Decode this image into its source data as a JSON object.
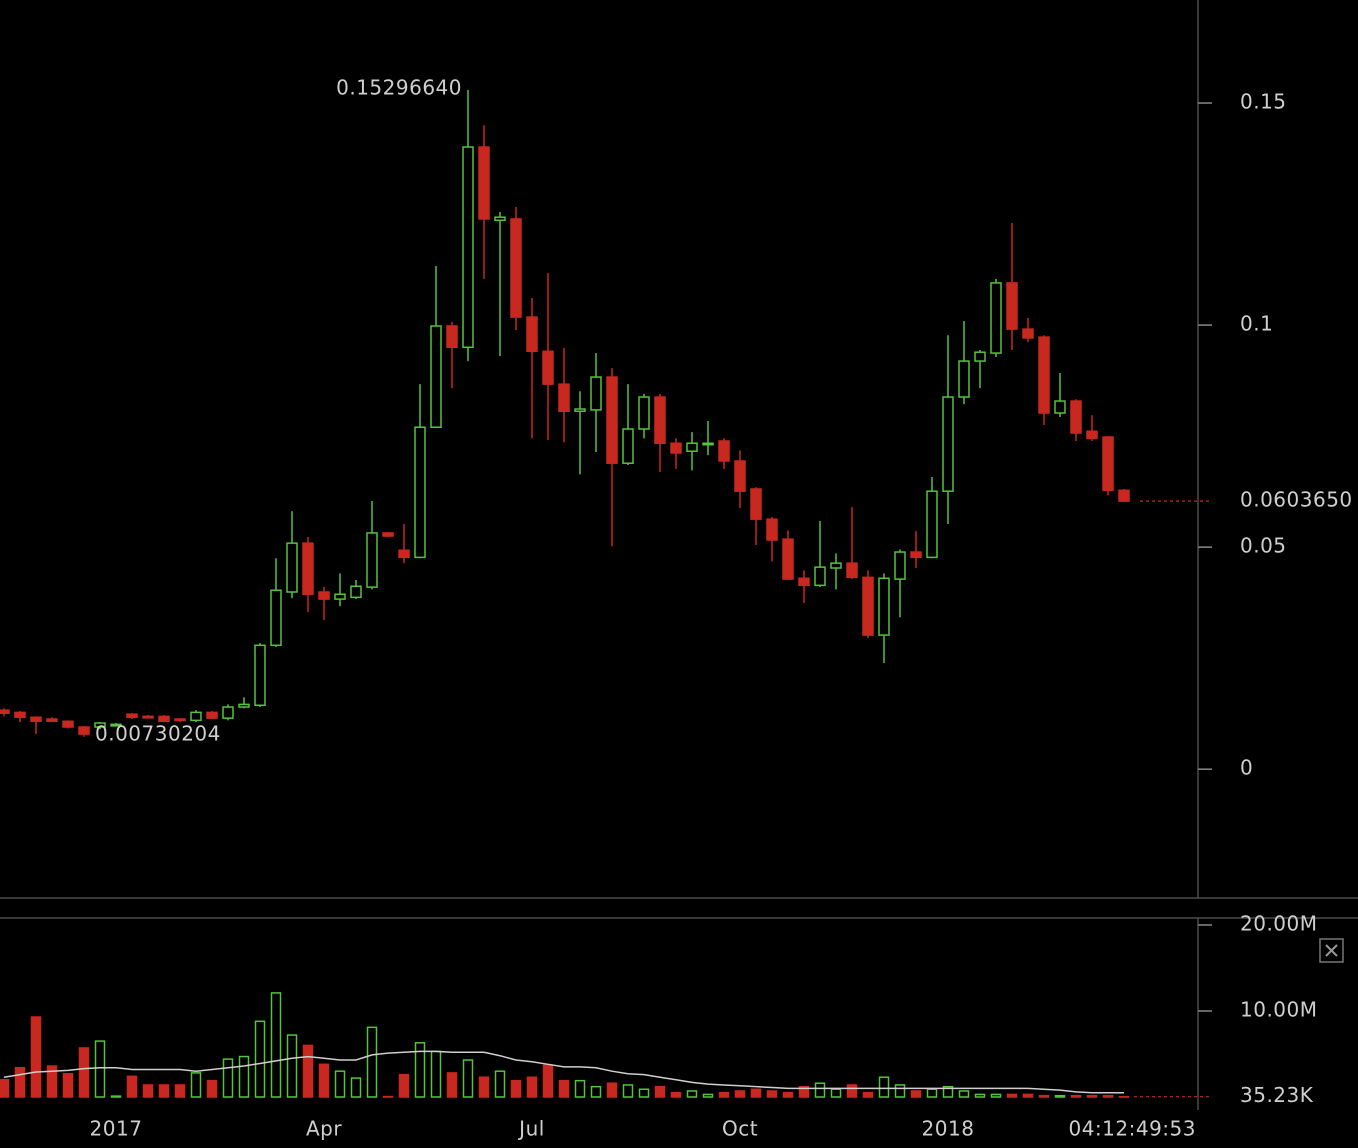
{
  "chart_data": [
    {
      "type": "candlestick",
      "up_color": "#56c23d",
      "down_color": "#c8281f",
      "open": [
        0.0133,
        0.0128,
        0.0117,
        0.0113,
        0.0108,
        0.0095,
        0.0095,
        0.0099,
        0.0124,
        0.0119,
        0.0119,
        0.0113,
        0.011,
        0.0128,
        0.0115,
        0.014,
        0.0144,
        0.0279,
        0.0399,
        0.0509,
        0.0399,
        0.0383,
        0.0387,
        0.041,
        0.0532,
        0.0493,
        0.0477,
        0.077,
        0.0998,
        0.095,
        0.1401,
        0.1236,
        0.1239,
        0.1018,
        0.0941,
        0.0867,
        0.0806,
        0.0809,
        0.0883,
        0.0689,
        0.0766,
        0.0838,
        0.0734,
        0.0716,
        0.0732,
        0.0739,
        0.0694,
        0.0631,
        0.0563,
        0.0518,
        0.043,
        0.0414,
        0.0453,
        0.0464,
        0.0432,
        0.0302,
        0.0428,
        0.0489,
        0.0477,
        0.0626,
        0.0838,
        0.0919,
        0.0937,
        0.1095,
        0.0991,
        0.0973,
        0.0802,
        0.0829,
        0.0761,
        0.0748,
        0.0628
      ],
      "high": [
        0.0137,
        0.0131,
        0.0119,
        0.0117,
        0.011,
        0.0097,
        0.0106,
        0.0104,
        0.0126,
        0.0122,
        0.0122,
        0.0115,
        0.0133,
        0.0131,
        0.0146,
        0.0162,
        0.0284,
        0.0475,
        0.0581,
        0.0523,
        0.041,
        0.0441,
        0.0426,
        0.0604,
        0.0534,
        0.0552,
        0.0867,
        0.1133,
        0.1007,
        0.1529664,
        0.145,
        0.1255,
        0.1266,
        0.1061,
        0.1117,
        0.0948,
        0.0851,
        0.0937,
        0.0903,
        0.0867,
        0.0845,
        0.0845,
        0.0745,
        0.0759,
        0.0784,
        0.0745,
        0.0718,
        0.0635,
        0.0568,
        0.0538,
        0.0448,
        0.0559,
        0.0486,
        0.059,
        0.0448,
        0.0441,
        0.0495,
        0.0536,
        0.0658,
        0.0977,
        0.1009,
        0.0944,
        0.1104,
        0.123,
        0.1016,
        0.0977,
        0.0892,
        0.0833,
        0.0797,
        0.075,
        0.0631
      ],
      "low": [
        0.0119,
        0.0106,
        0.0079,
        0.0106,
        0.0092,
        0.00730204,
        0.009,
        0.0097,
        0.0113,
        0.0115,
        0.0106,
        0.0106,
        0.0106,
        0.0113,
        0.011,
        0.0137,
        0.014,
        0.0275,
        0.0385,
        0.0354,
        0.0336,
        0.0367,
        0.0383,
        0.0405,
        0.0523,
        0.0464,
        0.0475,
        0.0768,
        0.0858,
        0.0919,
        0.1104,
        0.093,
        0.0989,
        0.0745,
        0.0741,
        0.0736,
        0.0664,
        0.0714,
        0.0502,
        0.0685,
        0.0745,
        0.0669,
        0.0676,
        0.0673,
        0.0707,
        0.0676,
        0.0588,
        0.0505,
        0.0468,
        0.0426,
        0.0374,
        0.041,
        0.0405,
        0.0428,
        0.0295,
        0.0239,
        0.0342,
        0.0453,
        0.0475,
        0.0552,
        0.0822,
        0.0858,
        0.0928,
        0.0944,
        0.0962,
        0.0775,
        0.0793,
        0.0739,
        0.0739,
        0.0617,
        0.0602
      ],
      "close": [
        0.0126,
        0.0117,
        0.0108,
        0.0108,
        0.0095,
        0.0079,
        0.0104,
        0.0101,
        0.0117,
        0.0117,
        0.0108,
        0.011,
        0.0128,
        0.0115,
        0.014,
        0.0146,
        0.0279,
        0.0403,
        0.0509,
        0.0394,
        0.0383,
        0.0394,
        0.0412,
        0.0532,
        0.0525,
        0.0477,
        0.077,
        0.0998,
        0.095,
        0.1401,
        0.1239,
        0.1243,
        0.1018,
        0.0941,
        0.0867,
        0.0806,
        0.0811,
        0.0883,
        0.0689,
        0.0766,
        0.0838,
        0.0734,
        0.0712,
        0.0734,
        0.0734,
        0.0694,
        0.0626,
        0.0563,
        0.0516,
        0.0428,
        0.0414,
        0.0455,
        0.0464,
        0.0432,
        0.0302,
        0.043,
        0.0489,
        0.0477,
        0.0626,
        0.0838,
        0.0919,
        0.0939,
        0.1095,
        0.0991,
        0.0971,
        0.0802,
        0.0829,
        0.0757,
        0.0745,
        0.0628,
        0.060365
      ],
      "max_label": "0.15296640",
      "min_label": "0.00730204",
      "last_label": "0.0603650",
      "ylim": [
        -0.029,
        0.1732
      ],
      "yticks": [
        0,
        0.05,
        0.1,
        0.15
      ]
    },
    {
      "type": "bar",
      "categories": [
        null,
        null,
        null,
        null,
        null,
        null,
        null,
        "2017",
        null,
        null,
        null,
        null,
        null,
        null,
        null,
        null,
        null,
        null,
        null,
        null,
        "Apr",
        null,
        null,
        null,
        null,
        null,
        null,
        null,
        null,
        null,
        null,
        null,
        null,
        "Jul",
        null,
        null,
        null,
        null,
        null,
        null,
        null,
        null,
        null,
        null,
        null,
        null,
        "Oct",
        null,
        null,
        null,
        null,
        null,
        null,
        null,
        null,
        null,
        null,
        null,
        null,
        "2018",
        null,
        null,
        null,
        null,
        null,
        null,
        null,
        null,
        null,
        null,
        null
      ],
      "values": [
        2.0,
        3.4,
        9.3,
        3.6,
        2.7,
        5.7,
        6.5,
        0.1,
        2.4,
        1.4,
        1.4,
        1.4,
        2.8,
        1.9,
        4.4,
        4.7,
        8.8,
        12.1,
        7.2,
        6.0,
        3.8,
        3.0,
        2.2,
        8.1,
        0.05,
        2.6,
        6.3,
        5.3,
        2.8,
        4.3,
        2.3,
        3.0,
        1.9,
        2.3,
        3.7,
        1.9,
        1.9,
        1.2,
        1.6,
        1.4,
        0.9,
        1.2,
        0.5,
        0.7,
        0.3,
        0.5,
        0.7,
        0.9,
        0.7,
        0.5,
        1.2,
        1.6,
        0.9,
        1.4,
        0.5,
        2.3,
        1.4,
        0.7,
        0.9,
        1.2,
        0.7,
        0.3,
        0.3,
        0.3,
        0.3,
        0.15,
        0.15,
        0.15,
        0.15,
        0.15,
        0.03523
      ],
      "ma": [
        2.3,
        2.6,
        2.9,
        3.0,
        3.1,
        3.3,
        3.4,
        3.4,
        3.2,
        3.2,
        3.2,
        3.2,
        3.0,
        3.2,
        3.4,
        3.6,
        3.9,
        4.2,
        4.5,
        4.7,
        4.5,
        4.3,
        4.3,
        4.9,
        5.1,
        5.2,
        5.3,
        5.3,
        5.2,
        5.2,
        5.2,
        4.8,
        4.3,
        4.1,
        3.8,
        3.5,
        3.5,
        3.4,
        3.0,
        2.7,
        2.6,
        2.3,
        2.0,
        1.7,
        1.5,
        1.4,
        1.3,
        1.2,
        1.1,
        1.0,
        1.0,
        1.0,
        1.0,
        1.0,
        1.0,
        1.0,
        1.0,
        1.0,
        1.0,
        1.0,
        1.0,
        1.0,
        1.0,
        1.0,
        1.0,
        0.9,
        0.8,
        0.6,
        0.5,
        0.5,
        0.5
      ],
      "ma_color": "#cfcfcf",
      "last_label": "35.23K",
      "countdown": "04:12:49:53",
      "ylim": [
        -0.35,
        20.58
      ],
      "yticks": [
        {
          "value": 10,
          "label": "10.00M"
        },
        {
          "value": 20,
          "label": "20.00M"
        }
      ]
    }
  ]
}
